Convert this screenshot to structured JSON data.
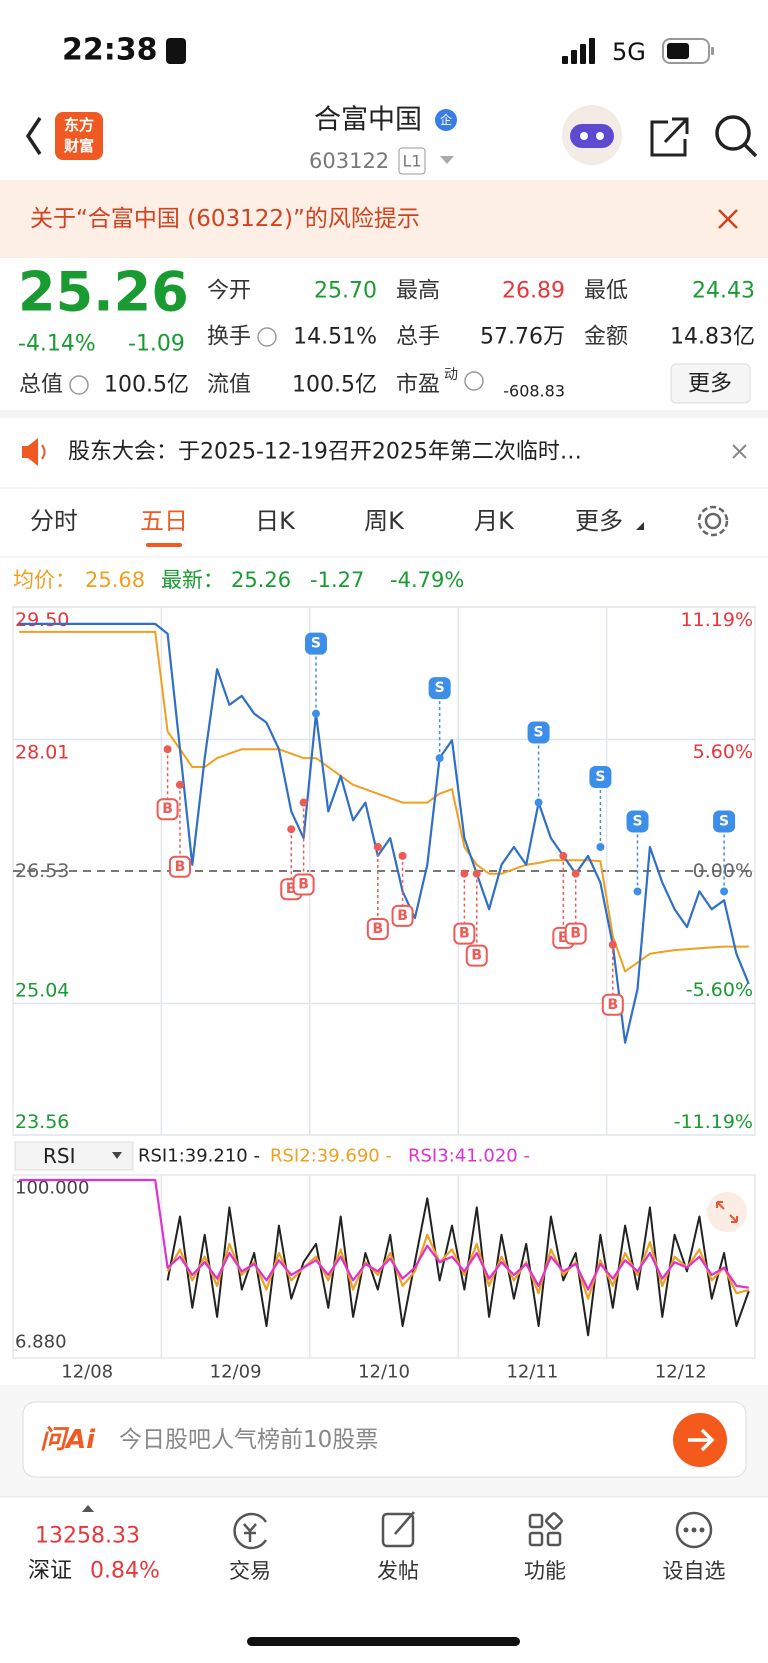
{
  "status_bar": {
    "time": "22:38",
    "network": "5G"
  },
  "header": {
    "logo": [
      "东方",
      "财富"
    ],
    "title": "合富中国",
    "badge": "企",
    "code": "603122",
    "level": "L1"
  },
  "risk_banner": "关于“合富中国 (603122)”的风险提示",
  "quote": {
    "price": "25.26",
    "change_pct": "-4.14%",
    "change": "-1.09",
    "color": "#1a9b32",
    "fields": [
      {
        "label": "今开",
        "value": "25.70",
        "color": "#1a9b32"
      },
      {
        "label": "最高",
        "value": "26.89",
        "color": "#e8363a"
      },
      {
        "label": "最低",
        "value": "24.43",
        "color": "#1a9b32"
      },
      {
        "label": "换手",
        "value": "14.51%",
        "info": true
      },
      {
        "label": "总手",
        "value": "57.76万"
      },
      {
        "label": "金额",
        "value": "14.83亿"
      },
      {
        "label": "总值",
        "value": "100.5亿",
        "info": true
      },
      {
        "label": "流值",
        "value": "100.5亿"
      },
      {
        "label": "市盈",
        "sup": "动",
        "value": "-608.83",
        "info": true
      }
    ],
    "more": "更多"
  },
  "notice": "股东大会：于2025-12-19召开2025年第二次临时…",
  "tabs": {
    "items": [
      "分时",
      "五日",
      "日K",
      "周K",
      "月K",
      "更多"
    ],
    "active": 1
  },
  "chart_data": [
    {
      "type": "line",
      "summary": [
        {
          "text": "均价：",
          "color": "#f0a020"
        },
        {
          "text": "25.68",
          "color": "#f0a020"
        },
        {
          "text": "最新：",
          "color": "#1a9b32"
        },
        {
          "text": "25.26",
          "color": "#1a9b32"
        },
        {
          "text": "-1.27",
          "color": "#1a9b32"
        },
        {
          "text": "-4.79%",
          "color": "#1a9b32"
        }
      ],
      "x": [
        0,
        1,
        2,
        3,
        4,
        5,
        6,
        7,
        8,
        9,
        10,
        11,
        12,
        13,
        14,
        15,
        16,
        17,
        18,
        19,
        20,
        21,
        22,
        23,
        24,
        25,
        26,
        27,
        28,
        29,
        30,
        31,
        32,
        33,
        34,
        35,
        36,
        37,
        38,
        39,
        40,
        41,
        42,
        43,
        44,
        45,
        46,
        47,
        48,
        49,
        50,
        51,
        52,
        53,
        54,
        55,
        56,
        57,
        58,
        59
      ],
      "xlim": [
        -0.5,
        59.5
      ],
      "xgrid": [
        11.5,
        23.5,
        35.5,
        47.5
      ],
      "ylim": [
        23.56,
        29.5
      ],
      "yticks": [
        {
          "value": 29.5,
          "label": "29.50"
        },
        {
          "value": 28.01,
          "label": "28.01"
        },
        {
          "value": 26.53,
          "label": "26.53"
        },
        {
          "value": 25.04,
          "label": "25.04"
        },
        {
          "value": 23.56,
          "label": "23.56"
        }
      ],
      "y2lim": [
        -11.19,
        11.19
      ],
      "y2ticks": [
        {
          "value": 11.19,
          "label": "11.19%"
        },
        {
          "value": 5.6,
          "label": "5.60%"
        },
        {
          "value": 0,
          "label": "0.00%"
        },
        {
          "value": -5.6,
          "label": "-5.60%"
        },
        {
          "value": -11.19,
          "label": "-11.19%"
        }
      ],
      "grid": true,
      "series": [
        {
          "color": "#2f6fc6",
          "values": [
            29.31,
            29.31,
            29.31,
            29.31,
            29.31,
            29.31,
            29.31,
            29.31,
            29.31,
            29.31,
            29.31,
            29.31,
            29.2,
            27.9,
            26.6,
            27.8,
            28.8,
            28.4,
            28.5,
            28.3,
            28.2,
            27.9,
            27.2,
            26.9,
            28.3,
            27.2,
            27.6,
            27.1,
            27.3,
            26.7,
            26.9,
            26.3,
            26.0,
            26.6,
            27.8,
            28.0,
            26.9,
            26.5,
            26.1,
            26.6,
            26.8,
            26.6,
            27.3,
            26.9,
            26.7,
            26.5,
            26.7,
            26.4,
            25.7,
            24.6,
            25.2,
            26.8,
            26.4,
            26.1,
            25.9,
            26.3,
            26.1,
            26.2,
            25.6,
            25.26
          ]
        },
        {
          "color": "#f0a020",
          "values": [
            29.22,
            29.22,
            29.22,
            29.22,
            29.22,
            29.22,
            29.22,
            29.22,
            29.22,
            29.22,
            29.22,
            29.22,
            28.1,
            27.9,
            27.7,
            27.7,
            27.8,
            27.85,
            27.9,
            27.9,
            27.9,
            27.9,
            27.85,
            27.8,
            27.8,
            27.7,
            27.6,
            27.5,
            27.45,
            27.4,
            27.35,
            27.3,
            27.3,
            27.3,
            27.4,
            27.45,
            26.8,
            26.6,
            26.5,
            26.5,
            26.55,
            26.6,
            26.62,
            26.65,
            26.65,
            26.65,
            26.65,
            26.64,
            25.8,
            25.4,
            25.5,
            25.6,
            25.62,
            25.64,
            25.65,
            25.66,
            25.67,
            25.68,
            25.68,
            25.68
          ]
        }
      ],
      "marker_colors": {
        "B": "#ec5b56",
        "S": "#3d8ee8"
      },
      "markers": [
        {
          "label": "B",
          "x": 12,
          "value": 27.9
        },
        {
          "label": "B",
          "x": 13,
          "value": 27.5
        },
        {
          "label": "B",
          "x": 22,
          "value": 27.0
        },
        {
          "label": "B",
          "x": 23,
          "value": 27.3
        },
        {
          "label": "S",
          "x": 24,
          "value": 28.3
        },
        {
          "label": "B",
          "x": 29,
          "value": 26.8
        },
        {
          "label": "B",
          "x": 31,
          "value": 26.7
        },
        {
          "label": "S",
          "x": 34,
          "value": 27.8
        },
        {
          "label": "B",
          "x": 36,
          "value": 26.5
        },
        {
          "label": "B",
          "x": 37,
          "value": 26.5
        },
        {
          "label": "S",
          "x": 42,
          "value": 27.3
        },
        {
          "label": "B",
          "x": 44,
          "value": 26.7
        },
        {
          "label": "B",
          "x": 45,
          "value": 26.5
        },
        {
          "label": "S",
          "x": 47,
          "value": 26.8
        },
        {
          "label": "B",
          "x": 48,
          "value": 25.7
        },
        {
          "label": "S",
          "x": 50,
          "value": 26.3
        },
        {
          "label": "S",
          "x": 57,
          "value": 26.3
        }
      ]
    },
    {
      "type": "line",
      "selector": "RSI",
      "x": [
        0,
        1,
        2,
        3,
        4,
        5,
        6,
        7,
        8,
        9,
        10,
        11,
        12,
        13,
        14,
        15,
        16,
        17,
        18,
        19,
        20,
        21,
        22,
        23,
        24,
        25,
        26,
        27,
        28,
        29,
        30,
        31,
        32,
        33,
        34,
        35,
        36,
        37,
        38,
        39,
        40,
        41,
        42,
        43,
        44,
        45,
        46,
        47,
        48,
        49,
        50,
        51,
        52,
        53,
        54,
        55,
        56,
        57,
        58,
        59
      ],
      "xlim": [
        -0.5,
        59.5
      ],
      "xticks": [
        {
          "value": 5.5,
          "label": "12/08"
        },
        {
          "value": 17.5,
          "label": "12/09"
        },
        {
          "value": 29.5,
          "label": "12/10"
        },
        {
          "value": 41.5,
          "label": "12/11"
        },
        {
          "value": 53.5,
          "label": "12/12"
        }
      ],
      "ylim": [
        6.88,
        100
      ],
      "yticks": [
        {
          "value": 100,
          "label": "100.000"
        },
        {
          "value": 6.88,
          "label": "6.880"
        }
      ],
      "series": [
        {
          "name": "RSI1:39.210 -",
          "color": "#222222",
          "values": [
            null,
            null,
            null,
            null,
            null,
            null,
            null,
            null,
            null,
            null,
            null,
            null,
            45,
            80,
            30,
            70,
            25,
            85,
            40,
            60,
            20,
            75,
            35,
            55,
            65,
            30,
            80,
            25,
            60,
            40,
            70,
            20,
            55,
            90,
            45,
            75,
            40,
            85,
            25,
            70,
            35,
            65,
            20,
            80,
            45,
            60,
            15,
            70,
            30,
            75,
            40,
            85,
            25,
            70,
            50,
            80,
            35,
            60,
            20,
            39.21
          ]
        },
        {
          "name": "RSI2:39.690 -",
          "color": "#f0a020",
          "values": [
            null,
            null,
            null,
            null,
            null,
            null,
            null,
            null,
            null,
            null,
            null,
            null,
            50,
            62,
            45,
            58,
            42,
            65,
            48,
            55,
            40,
            60,
            45,
            52,
            58,
            45,
            62,
            40,
            55,
            48,
            60,
            42,
            50,
            70,
            55,
            62,
            48,
            65,
            42,
            58,
            45,
            55,
            38,
            62,
            48,
            55,
            35,
            56,
            42,
            60,
            48,
            66,
            42,
            58,
            52,
            62,
            45,
            52,
            38,
            39.69
          ]
        },
        {
          "name": "RSI3:41.020 -",
          "color": "#e030d0",
          "values": [
            100,
            100,
            100,
            100,
            100,
            100,
            100,
            100,
            100,
            100,
            100,
            100,
            52,
            58,
            48,
            55,
            46,
            60,
            50,
            54,
            45,
            56,
            48,
            52,
            56,
            48,
            58,
            45,
            54,
            50,
            57,
            46,
            52,
            64,
            55,
            58,
            50,
            60,
            46,
            55,
            48,
            54,
            42,
            58,
            50,
            54,
            40,
            54,
            46,
            56,
            50,
            60,
            46,
            55,
            52,
            58,
            48,
            52,
            42,
            41.02
          ]
        }
      ]
    }
  ],
  "ai_bar": {
    "logo": "问Ai",
    "placeholder": "今日股吧人气榜前10股票"
  },
  "bottom_nav": {
    "index_value": "13258.33",
    "index_name": "深证",
    "index_change": "0.84%",
    "items": [
      "交易",
      "发帖",
      "功能",
      "设自选"
    ]
  }
}
